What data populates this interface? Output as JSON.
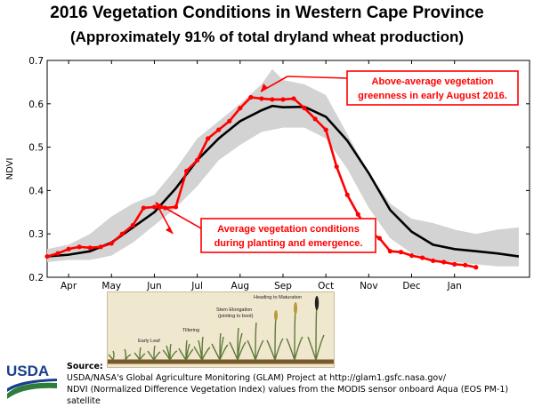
{
  "chart_data": {
    "type": "line",
    "title": "2016 Vegetation Conditions in Western Cape Province",
    "subtitle": "(Approximately 91% of total dryland wheat production)",
    "xlabel": "",
    "ylabel": "NDVI",
    "ylim": [
      0.2,
      0.7
    ],
    "yticks": [
      "0.2",
      "0.3",
      "0.4",
      "0.5",
      "0.6",
      "0.7"
    ],
    "xticks": [
      "Apr",
      "May",
      "Jun",
      "Jul",
      "Aug",
      "Sep",
      "Oct",
      "Nov",
      "Dec",
      "Jan"
    ],
    "grid": false,
    "series": [
      {
        "role": "band",
        "color": "#d3d3d3",
        "upper": [
          [
            3.0,
            0.265
          ],
          [
            3.5,
            0.275
          ],
          [
            4.0,
            0.3
          ],
          [
            4.5,
            0.34
          ],
          [
            5.0,
            0.37
          ],
          [
            5.5,
            0.39
          ],
          [
            6.0,
            0.45
          ],
          [
            6.5,
            0.52
          ],
          [
            7.0,
            0.56
          ],
          [
            7.5,
            0.6
          ],
          [
            8.0,
            0.645
          ],
          [
            8.25,
            0.68
          ],
          [
            8.5,
            0.655
          ],
          [
            9.0,
            0.645
          ],
          [
            9.5,
            0.62
          ],
          [
            10.0,
            0.53
          ],
          [
            10.5,
            0.44
          ],
          [
            11.0,
            0.37
          ],
          [
            11.5,
            0.335
          ],
          [
            12.0,
            0.325
          ],
          [
            12.5,
            0.31
          ],
          [
            13.0,
            0.3
          ],
          [
            13.5,
            0.31
          ],
          [
            14.0,
            0.315
          ]
        ],
        "lower": [
          [
            3.0,
            0.235
          ],
          [
            3.5,
            0.24
          ],
          [
            4.0,
            0.24
          ],
          [
            4.5,
            0.25
          ],
          [
            5.0,
            0.28
          ],
          [
            5.5,
            0.32
          ],
          [
            6.0,
            0.36
          ],
          [
            6.5,
            0.41
          ],
          [
            7.0,
            0.47
          ],
          [
            7.5,
            0.505
          ],
          [
            8.0,
            0.535
          ],
          [
            8.5,
            0.545
          ],
          [
            9.0,
            0.545
          ],
          [
            9.5,
            0.52
          ],
          [
            10.0,
            0.45
          ],
          [
            10.5,
            0.36
          ],
          [
            11.0,
            0.29
          ],
          [
            11.5,
            0.255
          ],
          [
            12.0,
            0.24
          ],
          [
            12.5,
            0.235
          ],
          [
            13.0,
            0.23
          ],
          [
            13.5,
            0.225
          ],
          [
            14.0,
            0.225
          ]
        ]
      },
      {
        "role": "average",
        "color": "#000000",
        "points": [
          [
            3.0,
            0.248
          ],
          [
            3.5,
            0.252
          ],
          [
            4.0,
            0.26
          ],
          [
            4.5,
            0.28
          ],
          [
            5.0,
            0.315
          ],
          [
            5.5,
            0.35
          ],
          [
            6.0,
            0.405
          ],
          [
            6.5,
            0.47
          ],
          [
            7.0,
            0.52
          ],
          [
            7.5,
            0.56
          ],
          [
            8.0,
            0.585
          ],
          [
            8.25,
            0.595
          ],
          [
            8.5,
            0.592
          ],
          [
            9.0,
            0.593
          ],
          [
            9.5,
            0.57
          ],
          [
            10.0,
            0.515
          ],
          [
            10.5,
            0.44
          ],
          [
            11.0,
            0.355
          ],
          [
            11.5,
            0.305
          ],
          [
            12.0,
            0.275
          ],
          [
            12.5,
            0.265
          ],
          [
            13.0,
            0.26
          ],
          [
            13.5,
            0.255
          ],
          [
            14.0,
            0.248
          ]
        ]
      },
      {
        "role": "2016",
        "color": "#ff0000",
        "points": [
          [
            3.0,
            0.248
          ],
          [
            3.25,
            0.255
          ],
          [
            3.5,
            0.265
          ],
          [
            3.75,
            0.27
          ],
          [
            4.0,
            0.268
          ],
          [
            4.25,
            0.27
          ],
          [
            4.5,
            0.278
          ],
          [
            4.75,
            0.3
          ],
          [
            5.0,
            0.32
          ],
          [
            5.25,
            0.36
          ],
          [
            5.5,
            0.362
          ],
          [
            5.75,
            0.36
          ],
          [
            6.0,
            0.362
          ],
          [
            6.25,
            0.445
          ],
          [
            6.5,
            0.47
          ],
          [
            6.75,
            0.52
          ],
          [
            7.0,
            0.54
          ],
          [
            7.25,
            0.56
          ],
          [
            7.5,
            0.59
          ],
          [
            7.75,
            0.615
          ],
          [
            8.0,
            0.612
          ],
          [
            8.25,
            0.61
          ],
          [
            8.5,
            0.61
          ],
          [
            8.75,
            0.612
          ],
          [
            9.0,
            0.59
          ],
          [
            9.25,
            0.565
          ],
          [
            9.5,
            0.54
          ],
          [
            9.75,
            0.455
          ],
          [
            10.0,
            0.39
          ],
          [
            10.25,
            0.345
          ],
          [
            10.5,
            0.305
          ],
          [
            10.75,
            0.29
          ],
          [
            11.0,
            0.26
          ],
          [
            11.25,
            0.258
          ],
          [
            11.5,
            0.25
          ],
          [
            11.75,
            0.245
          ],
          [
            12.0,
            0.238
          ],
          [
            12.25,
            0.235
          ],
          [
            12.5,
            0.23
          ],
          [
            12.75,
            0.228
          ],
          [
            13.0,
            0.223
          ]
        ]
      }
    ],
    "annotations": [
      {
        "name": "above-average",
        "lines": [
          "Above-average vegetation",
          "greenness in early August 2016."
        ]
      },
      {
        "name": "planting",
        "lines": [
          "Average vegetation conditions",
          "during planting and emergence."
        ]
      }
    ]
  },
  "stages": {
    "early_leaf": "Early Leaf",
    "tillering": "Tillering",
    "stem_elongation": "Stem Elongation",
    "stem_elongation_sub": "(jointing to boot)",
    "heading": "Heading to Maturation"
  },
  "logo": {
    "text": "USDA"
  },
  "source": {
    "heading": "Source:",
    "line1": "USDA/NASA's Global Agriculture Monitoring (GLAM) Project at http://glam1.gsfc.nasa.gov/",
    "line2": "NDVI (Normalized Difference Vegetation Index) values from the MODIS sensor onboard Aqua (EOS PM-1) satellite"
  }
}
